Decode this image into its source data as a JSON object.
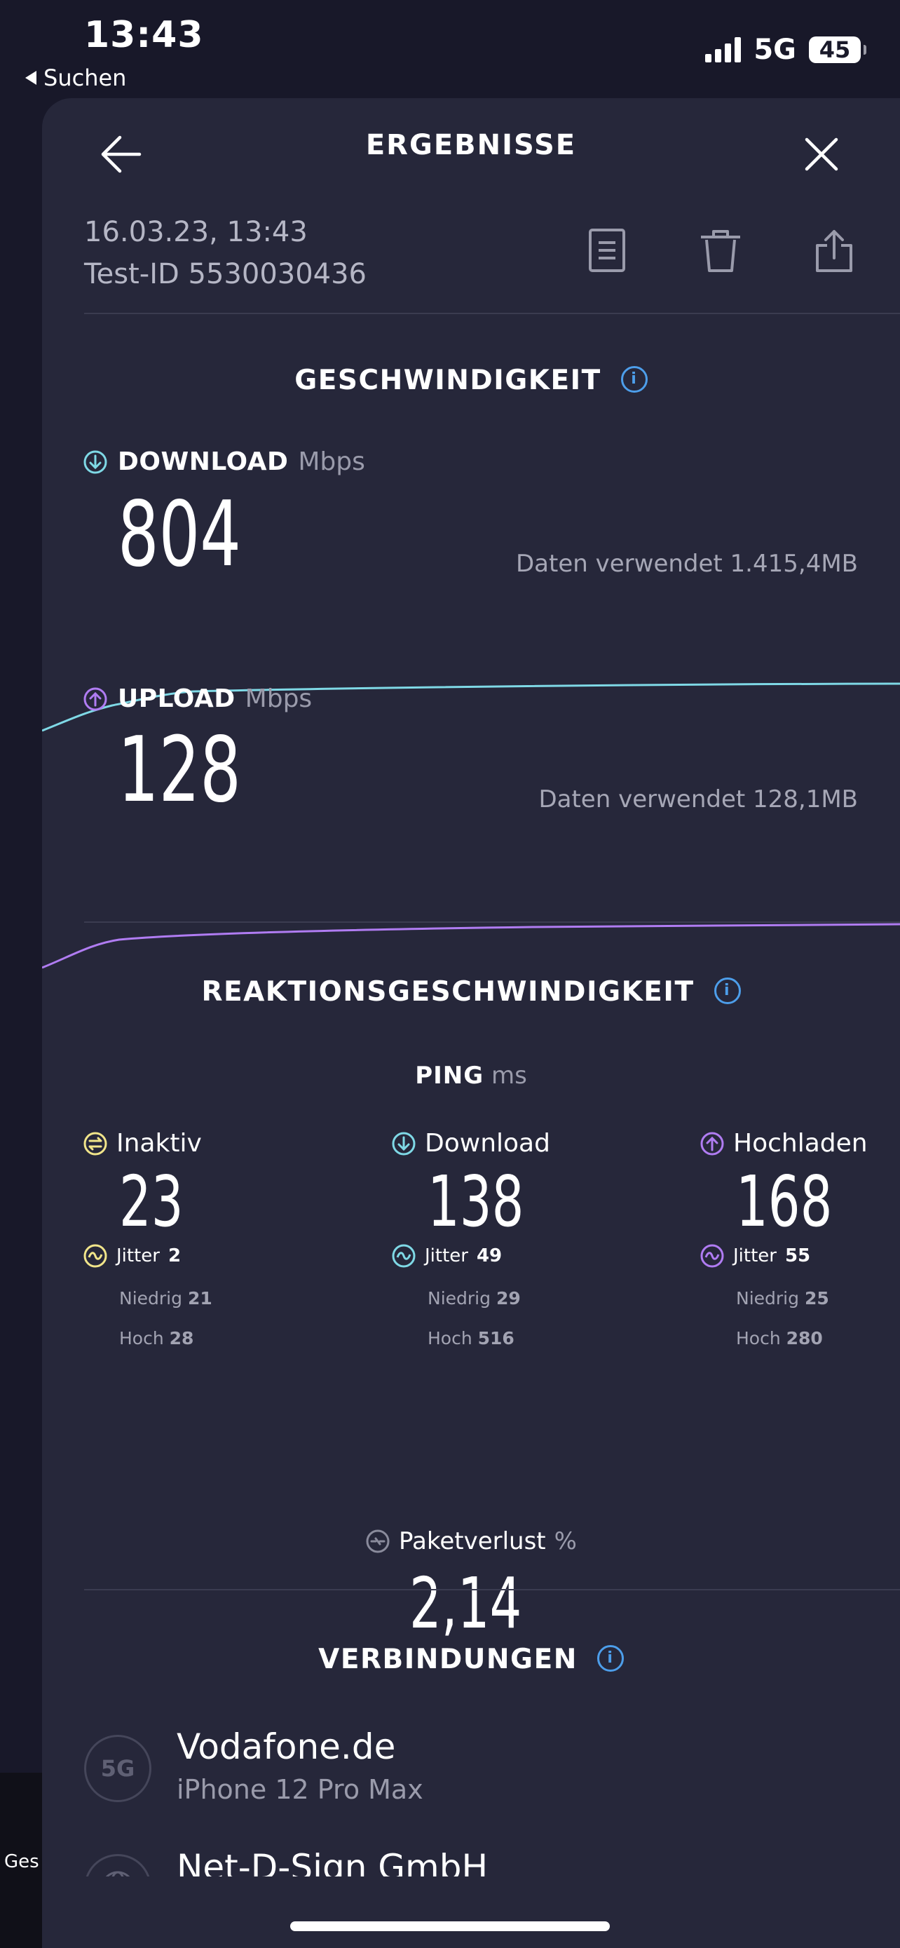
{
  "status_bar": {
    "time": "13:43",
    "back_label": "Suchen",
    "network": "5G",
    "battery": "45"
  },
  "background": {
    "side_label": "Ges"
  },
  "header": {
    "title": "ERGEBNISSE",
    "back_icon": "arrow-left-icon",
    "close_icon": "close-icon"
  },
  "meta": {
    "date": "16.03.23, 13:43",
    "test_id": "Test-ID 5530030436",
    "actions": [
      "report-icon",
      "trash-icon",
      "share-icon"
    ]
  },
  "speed": {
    "title": "GESCHWINDIGKEIT",
    "download": {
      "label": "DOWNLOAD",
      "unit": "Mbps",
      "value": "804",
      "data_used": "Daten verwendet 1.415,4MB",
      "color": "#7fd9e6"
    },
    "upload": {
      "label": "UPLOAD",
      "unit": "Mbps",
      "value": "128",
      "data_used": "Daten verwendet 128,1MB",
      "color": "#b07cf2"
    }
  },
  "latency": {
    "title": "REAKTIONSGESCHWINDIGKEIT",
    "ping_label": "PING",
    "ping_unit": "ms",
    "columns": [
      {
        "name": "Inaktiv",
        "value": "23",
        "jitter_label": "Jitter",
        "jitter": "2",
        "low_label": "Niedrig",
        "low": "21",
        "high_label": "Hoch",
        "high": "28",
        "color": "#f1e58a"
      },
      {
        "name": "Download",
        "value": "138",
        "jitter_label": "Jitter",
        "jitter": "49",
        "low_label": "Niedrig",
        "low": "29",
        "high_label": "Hoch",
        "high": "516",
        "color": "#7fd9e6"
      },
      {
        "name": "Hochladen",
        "value": "168",
        "jitter_label": "Jitter",
        "jitter": "55",
        "low_label": "Niedrig",
        "low": "25",
        "high_label": "Hoch",
        "high": "280",
        "color": "#b07cf2"
      }
    ],
    "packet_loss": {
      "label": "Paketverlust",
      "unit": "%",
      "value": "2,14"
    }
  },
  "connections": {
    "title": "VERBINDUNGEN",
    "items": [
      {
        "badge": "5G",
        "name": "Vodafone.de",
        "device": "iPhone 12 Pro Max"
      },
      {
        "badge_icon": "globe-icon",
        "name": "Net-D-Sign GmbH"
      }
    ]
  }
}
